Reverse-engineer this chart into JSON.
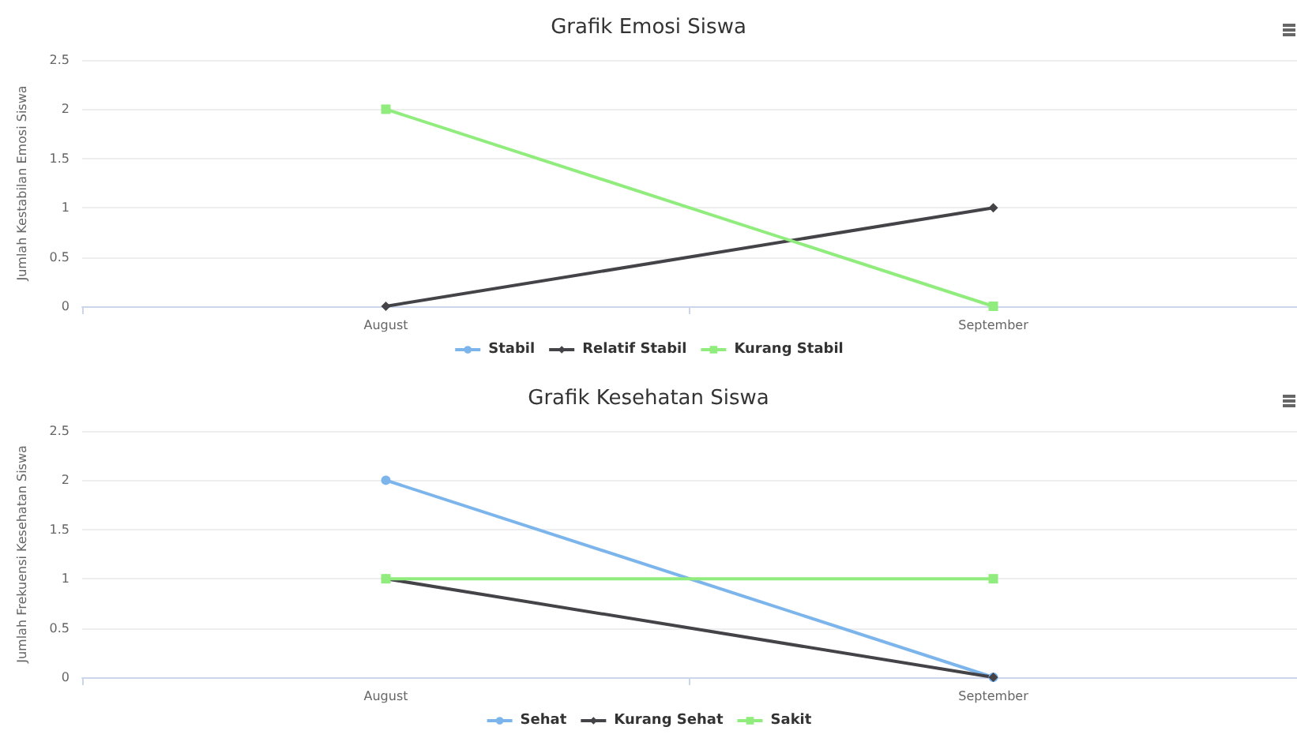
{
  "chart_data": [
    {
      "type": "line",
      "title": "Grafik Emosi Siswa",
      "ylabel": "Jumlah Kestabilan Emosi Siswa",
      "categories": [
        "August",
        "September"
      ],
      "series": [
        {
          "name": "Stabil",
          "color": "#7cb5ec",
          "marker": "circle",
          "values": [
            null,
            null
          ]
        },
        {
          "name": "Relatif Stabil",
          "color": "#434348",
          "marker": "diamond",
          "values": [
            0,
            1
          ]
        },
        {
          "name": "Kurang Stabil",
          "color": "#90ed7d",
          "marker": "square",
          "values": [
            2,
            0
          ]
        }
      ],
      "ylim": [
        0,
        2.5
      ],
      "yticks": [
        0,
        0.5,
        1,
        1.5,
        2,
        2.5
      ],
      "grid": "y",
      "legend": "bottom"
    },
    {
      "type": "line",
      "title": "Grafik Kesehatan Siswa",
      "ylabel": "Jumlah Frekuensi Kesehatan Siswa",
      "categories": [
        "August",
        "September"
      ],
      "series": [
        {
          "name": "Sehat",
          "color": "#7cb5ec",
          "marker": "circle",
          "values": [
            2,
            0
          ]
        },
        {
          "name": "Kurang Sehat",
          "color": "#434348",
          "marker": "diamond",
          "values": [
            1,
            0
          ]
        },
        {
          "name": "Sakit",
          "color": "#90ed7d",
          "marker": "square",
          "values": [
            1,
            1
          ]
        }
      ],
      "ylim": [
        0,
        2.5
      ],
      "yticks": [
        0,
        0.5,
        1,
        1.5,
        2,
        2.5
      ],
      "grid": "y",
      "legend": "bottom"
    }
  ]
}
